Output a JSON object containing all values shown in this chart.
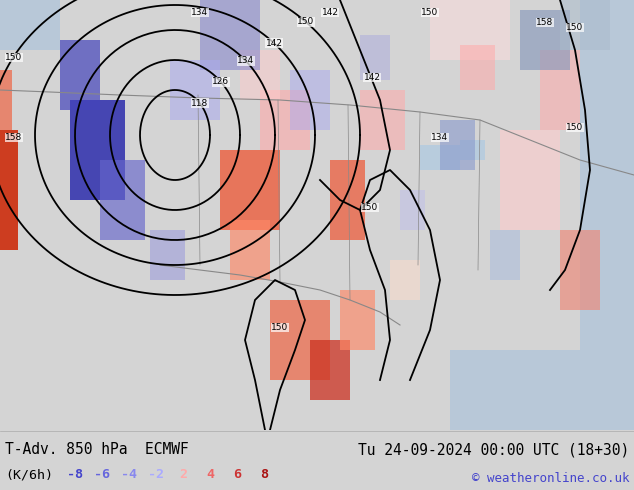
{
  "title_left": "T-Adv. 850 hPa  ECMWF",
  "title_right": "Tu 24-09-2024 00:00 UTC (18+30)",
  "unit_label": "(K/6h)",
  "copyright": "© weatheronline.co.uk",
  "legend_values": [
    -8,
    -6,
    -4,
    -2,
    2,
    4,
    6,
    8
  ],
  "legend_colors": [
    "#4444cc",
    "#6666dd",
    "#8888ee",
    "#aaaaff",
    "#ffaaaa",
    "#ee6666",
    "#cc3333",
    "#aa1111"
  ],
  "bg_color": "#d4d4d4",
  "bottom_bg": "#d4d4d4",
  "title_color": "#000000",
  "title_fontsize": 10.5,
  "legend_fontsize": 9.5,
  "copyright_fontsize": 9,
  "copyright_color": "#4444cc",
  "fig_width": 6.34,
  "fig_height": 4.9,
  "dpi": 100,
  "map_land_color": "#c8e8b0",
  "map_ocean_color": "#c8d8e8",
  "contour_color": "#000000",
  "warm_red_dark": "#cc2200",
  "warm_red_mid": "#ee5533",
  "warm_red_light": "#ffaaaa",
  "cold_blue_dark": "#2222aa",
  "cold_blue_mid": "#5555cc",
  "cold_blue_light": "#aaaaee",
  "green_land": "#90cc80",
  "pink_light": "#ffdddd",
  "blue_light2": "#ddddff"
}
